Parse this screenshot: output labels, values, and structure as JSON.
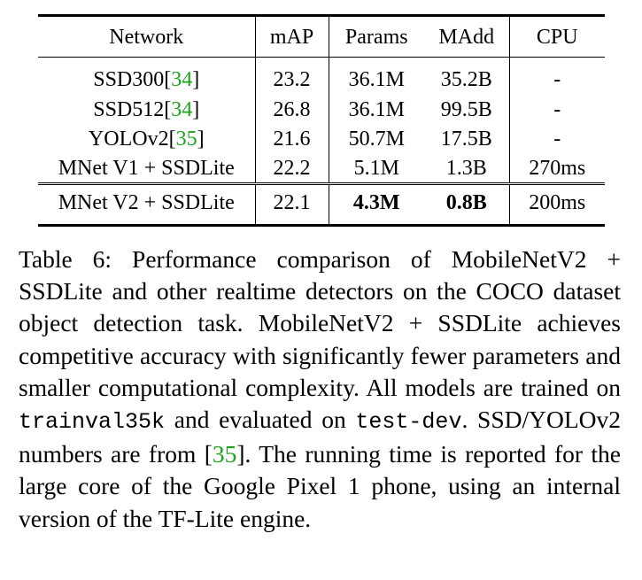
{
  "table": {
    "headers": [
      "Network",
      "mAP",
      "Params",
      "MAdd",
      "CPU"
    ],
    "rows": [
      {
        "network": "SSD300",
        "cite": "34",
        "map": "23.2",
        "params": "36.1M",
        "madd": "35.2B",
        "cpu": "-"
      },
      {
        "network": "SSD512",
        "cite": "34",
        "map": "26.8",
        "params": "36.1M",
        "madd": "99.5B",
        "cpu": "-"
      },
      {
        "network": "YOLOv2",
        "cite": "35",
        "map": "21.6",
        "params": "50.7M",
        "madd": "17.5B",
        "cpu": "-"
      },
      {
        "network": "MNet V1 + SSDLite",
        "map": "22.2",
        "params": "5.1M",
        "madd": "1.3B",
        "cpu": "270ms"
      }
    ],
    "final_row": {
      "network": "MNet V2 + SSDLite",
      "map": "22.1",
      "params": "4.3M",
      "madd": "0.8B",
      "cpu": "200ms"
    }
  },
  "caption": {
    "part1": "Table 6: Performance comparison of MobileNetV2 + SSDLite and other realtime detectors on the COCO dataset object detection task. MobileNetV2 + SSDLite achieves competitive accuracy with significantly fewer parameters and smaller computational complexity. All models are trained on ",
    "code1": "trainval35k",
    "part2": " and evaluated on ",
    "code2": "test-dev",
    "part3": ". SSD/YOLOv2 numbers are from [",
    "cite": "35",
    "part4": "]. The running time is reported for the large core of the Google Pixel 1 phone, using an internal version of the TF-Lite engine."
  },
  "colors": {
    "citation": "#1fa31f",
    "text": "#000000"
  }
}
